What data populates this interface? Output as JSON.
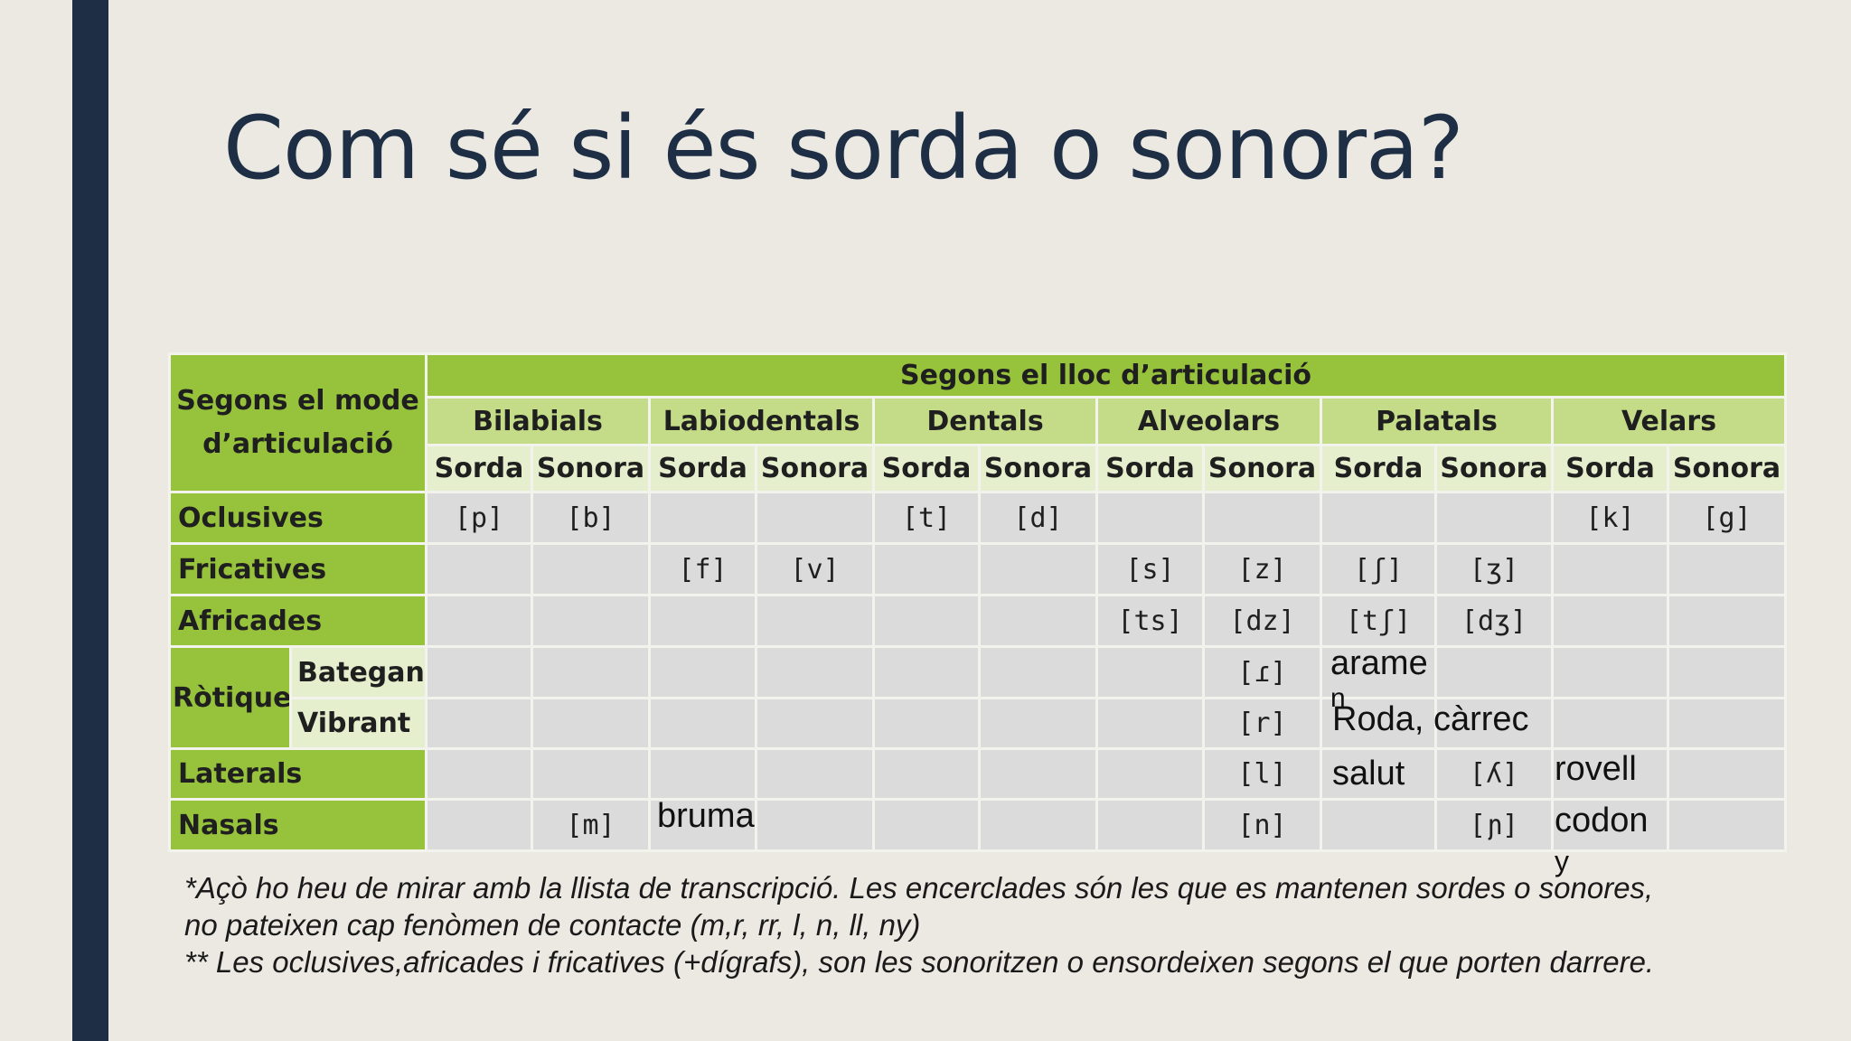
{
  "slide": {
    "title": "Com sé si és sorda o sonora?"
  },
  "table": {
    "corner": "Segons el mode d’articulació",
    "place_header": "Segons el lloc d’articulació",
    "places": [
      "Bilabials",
      "Labiodentals",
      "Dentals",
      "Alveolars",
      "Palatals",
      "Velars"
    ],
    "voicing": [
      "Sorda",
      "Sonora"
    ],
    "rows": [
      {
        "label": "Oclusives",
        "cells": [
          "[p]",
          "[b]",
          "",
          "",
          "[t]",
          "[d]",
          "",
          "",
          "",
          "",
          "[k]",
          "[g]"
        ]
      },
      {
        "label": "Fricatives",
        "cells": [
          "",
          "",
          "[f]",
          "[v]",
          "",
          "",
          "[s]",
          "[z]",
          "[ʃ]",
          "[ʒ]",
          "",
          ""
        ]
      },
      {
        "label": "Africades",
        "cells": [
          "",
          "",
          "",
          "",
          "",
          "",
          "[ts]",
          "[dz]",
          "[tʃ]",
          "[dʒ]",
          "",
          ""
        ]
      },
      {
        "label": "Ròtiques",
        "sublabel": "Bategant",
        "cells": [
          "",
          "",
          "",
          "",
          "",
          "",
          "",
          "[ɾ]",
          "",
          "",
          "",
          ""
        ]
      },
      {
        "sublabel": "Vibrant",
        "cells": [
          "",
          "",
          "",
          "",
          "",
          "",
          "",
          "[r]",
          "",
          "",
          "",
          ""
        ]
      },
      {
        "label": "Laterals",
        "cells": [
          "",
          "",
          "",
          "",
          "",
          "",
          "",
          "[l]",
          "",
          "[ʎ]",
          "",
          ""
        ]
      },
      {
        "label": "Nasals",
        "cells": [
          "",
          "[m]",
          "",
          "",
          "",
          "",
          "",
          "[n]",
          "",
          "[ɲ]",
          "",
          ""
        ]
      }
    ]
  },
  "overlays": {
    "aramen": "arame",
    "aramen_cut": "n",
    "roda": "Roda, càrrec",
    "salut": "salut",
    "rovell": "rovell",
    "bruma": "bruma",
    "codony": "codon",
    "codony_cut": "y"
  },
  "notes": [
    "*Açò ho heu de mirar amb la llista de transcripció. Les encerclades són les que es mantenen sordes o sonores, no pateixen cap fenòmen de contacte (m,r, rr, l, n, ll, ny)",
    "** Les oclusives,africades i fricatives (+dígrafs), son les sonoritzen o ensordeixen segons el que porten darrere."
  ]
}
